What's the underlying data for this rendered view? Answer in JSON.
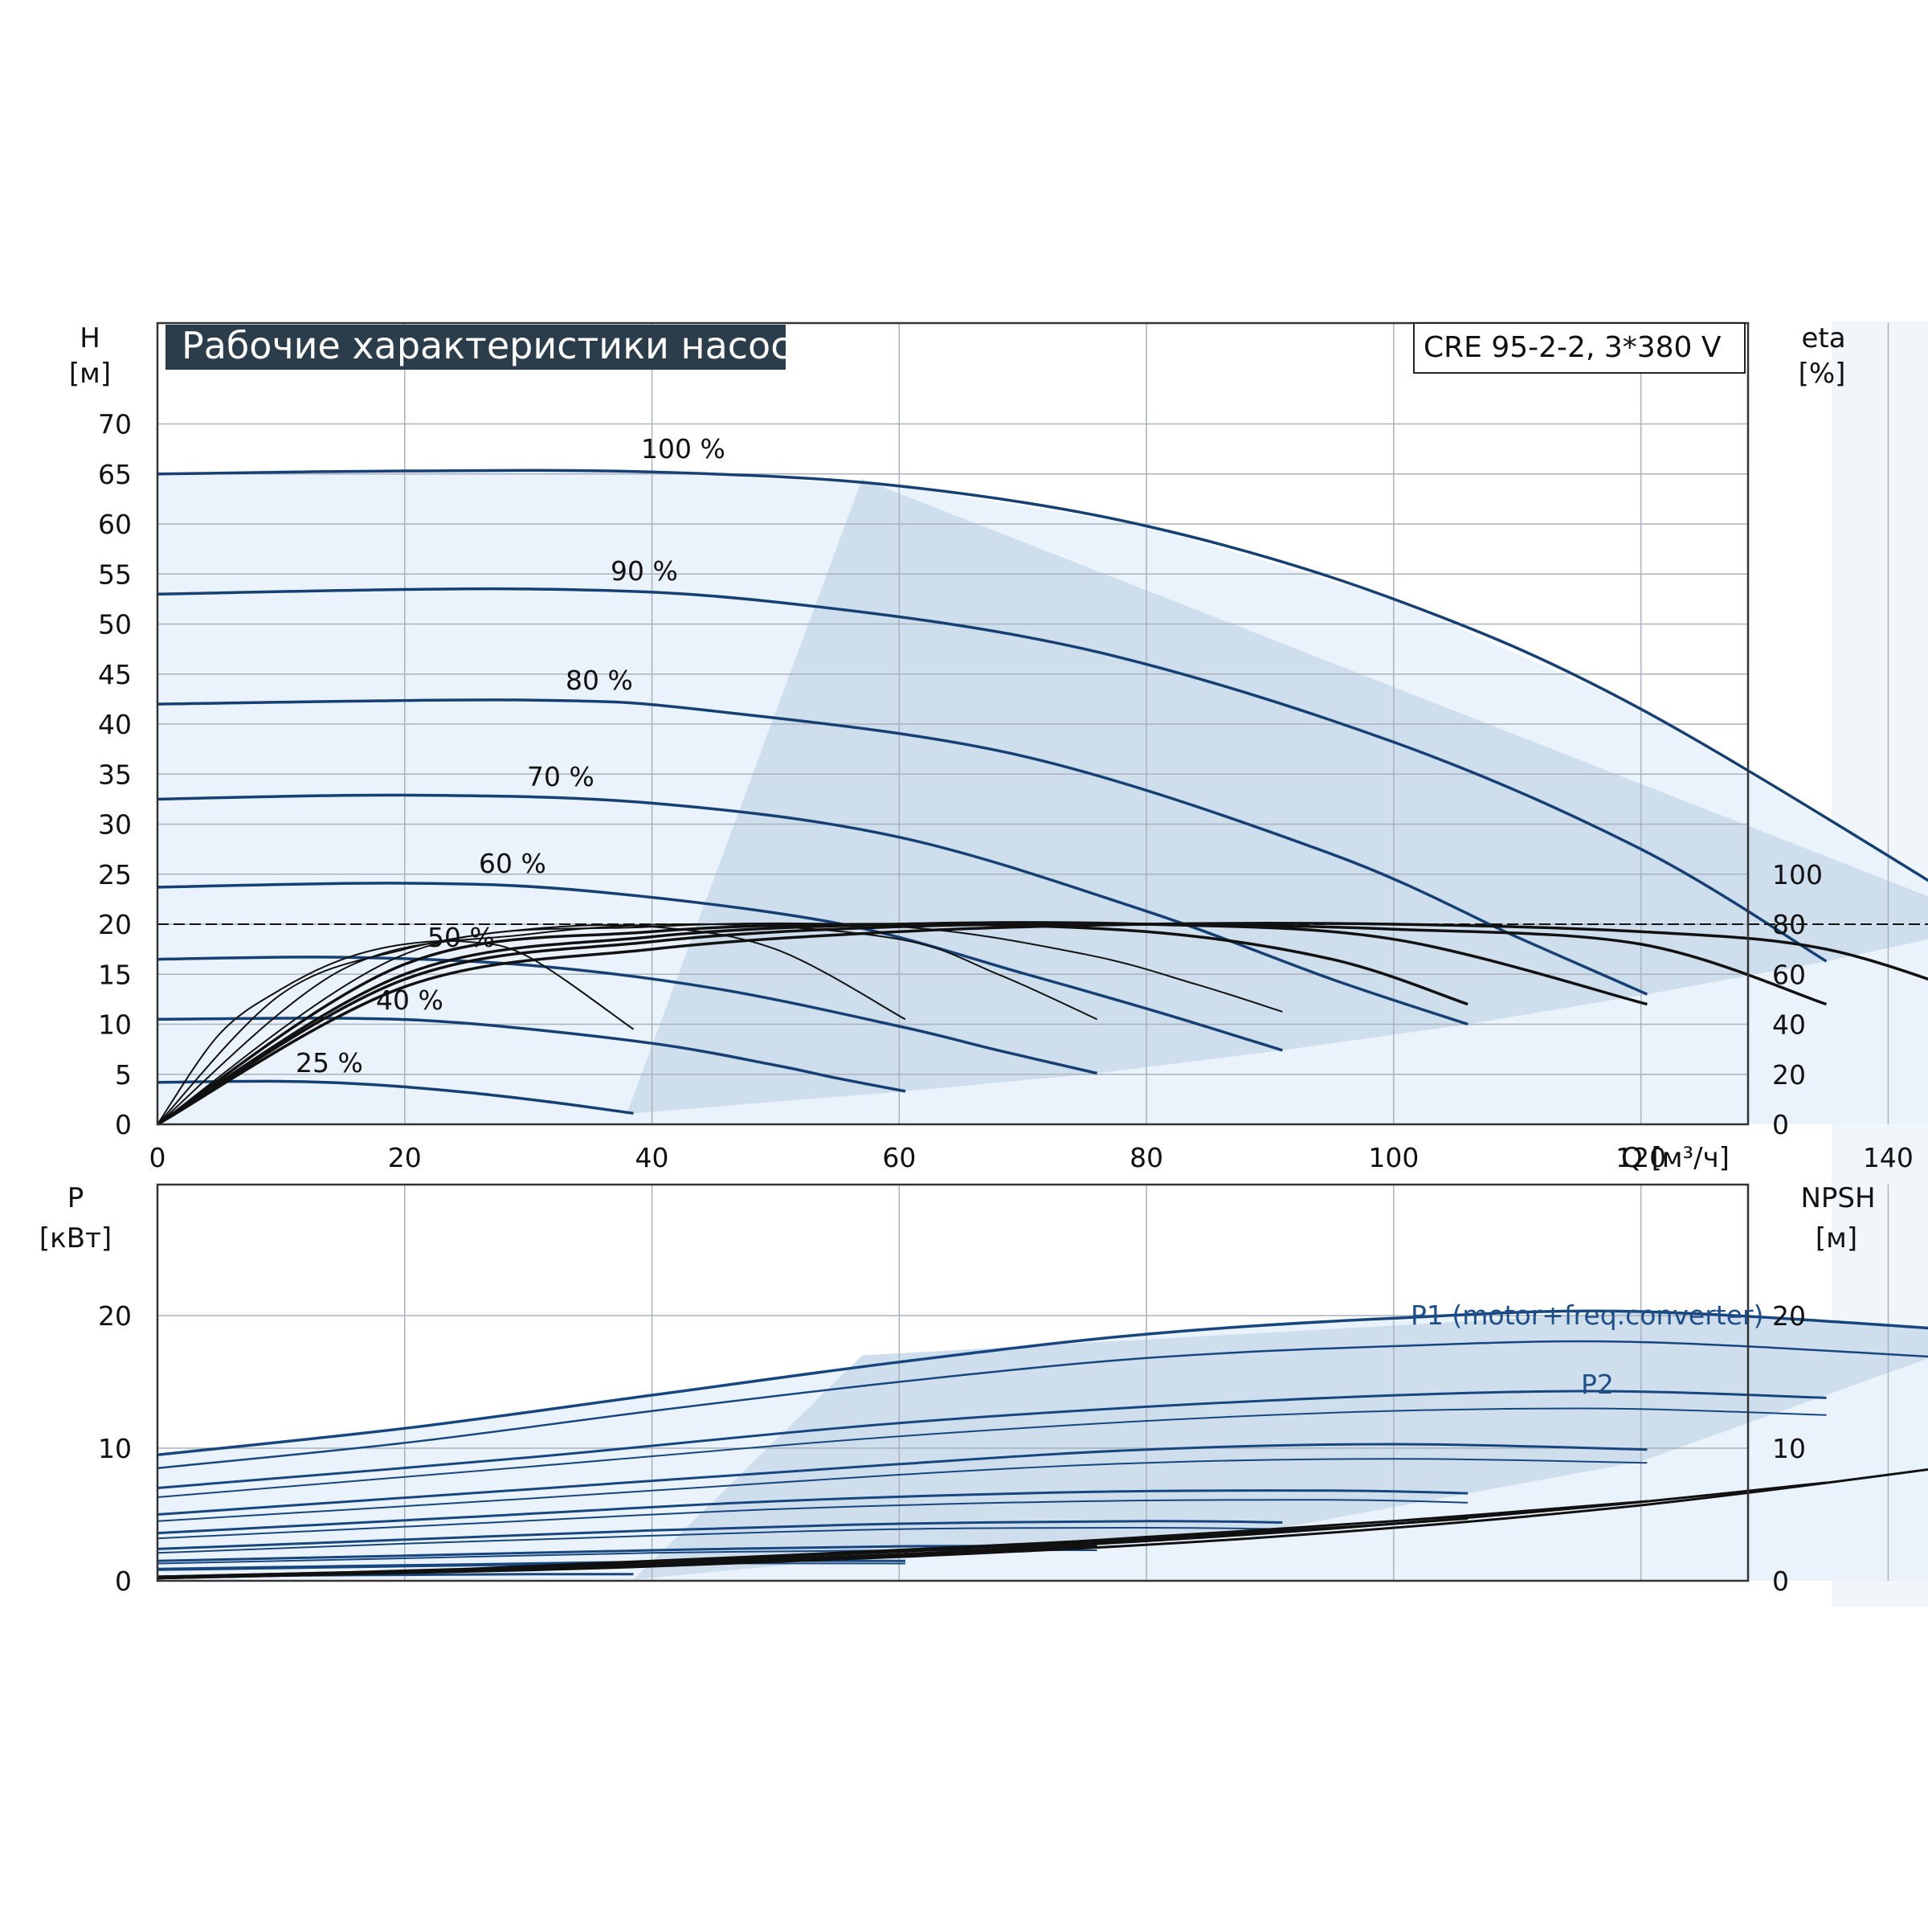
{
  "title": "Рабочие характеристики насоса",
  "model": "CRE 95-2-2, 3*380 V",
  "colors": {
    "title_bg": "#2b3c4b",
    "curve_blue": "#163f73",
    "power_blue": "#17467f",
    "efficiency_black": "#111111",
    "region_light": "#eaf3fb",
    "region_dark": "#cfdeed",
    "grid": "#a9b1bb"
  },
  "chart_data": [
    {
      "type": "line",
      "id": "head-efficiency",
      "xlabel": "Q [м³/ч]",
      "ylabel": "H",
      "ylabel_unit": "[м]",
      "y2label": "eta",
      "y2label_unit": "[%]",
      "xlim": [
        0,
        164
      ],
      "ylim": [
        0,
        75
      ],
      "y2lim": [
        0,
        165
      ],
      "xticks": [
        "0",
        "20",
        "40",
        "60",
        "80",
        "100",
        "120",
        "140"
      ],
      "yticks": [
        "0",
        "5",
        "10",
        "15",
        "20",
        "25",
        "30",
        "35",
        "40",
        "45",
        "50",
        "55",
        "60",
        "65",
        "70"
      ],
      "y2ticks": [
        "0",
        "20",
        "40",
        "60",
        "80",
        "100"
      ],
      "grid": true,
      "series": [
        {
          "name": "100 %",
          "shutoff": 65.0,
          "x": [
            0,
            20,
            40,
            60,
            80,
            100,
            120,
            149
          ],
          "y": [
            65.0,
            65.3,
            65.2,
            63.8,
            59.8,
            52.5,
            41.5,
            20.0
          ]
        },
        {
          "name": "90 %",
          "shutoff": 53.0,
          "x": [
            0,
            30,
            50,
            75,
            100,
            120,
            135
          ],
          "y": [
            53.0,
            53.5,
            52.2,
            47.5,
            38.2,
            27.5,
            16.3
          ]
        },
        {
          "name": "80 %",
          "shutoff": 42.0,
          "x": [
            0,
            30,
            45,
            70,
            95,
            110,
            120.5
          ],
          "y": [
            42.0,
            42.4,
            41.3,
            36.8,
            27.0,
            18.7,
            13.0
          ]
        },
        {
          "name": "70 %",
          "shutoff": 32.5,
          "x": [
            0,
            20,
            40,
            60,
            80,
            95,
            106
          ],
          "y": [
            32.5,
            32.9,
            32.1,
            28.7,
            21.3,
            14.5,
            10.0
          ]
        },
        {
          "name": "60 %",
          "shutoff": 23.7,
          "x": [
            0,
            20,
            35,
            55,
            70,
            81,
            91
          ],
          "y": [
            23.7,
            24.1,
            23.3,
            20.1,
            15.1,
            11.2,
            7.4
          ]
        },
        {
          "name": "50 %",
          "shutoff": 16.5,
          "x": [
            0,
            15,
            30,
            45,
            60,
            68,
            76
          ],
          "y": [
            16.5,
            16.7,
            15.9,
            13.6,
            9.8,
            7.4,
            5.1
          ]
        },
        {
          "name": "40 %",
          "shutoff": 10.5,
          "x": [
            0,
            15,
            25,
            40,
            50,
            55,
            60.5
          ],
          "y": [
            10.5,
            10.6,
            10.1,
            8.1,
            5.9,
            4.6,
            3.3
          ]
        },
        {
          "name": "25 %",
          "shutoff": 4.2,
          "x": [
            0,
            10,
            17,
            25,
            32,
            38.5
          ],
          "y": [
            4.2,
            4.3,
            4.0,
            3.2,
            2.2,
            1.1
          ]
        }
      ],
      "efficiency": [
        {
          "x": [
            0,
            20,
            40,
            60,
            80,
            100,
            120,
            135,
            149
          ],
          "eta": [
            0,
            55,
            70,
            77,
            80,
            80,
            77,
            70,
            48
          ]
        },
        {
          "x": [
            0,
            20,
            40,
            60,
            80,
            100,
            120,
            135
          ],
          "eta": [
            0,
            58,
            73,
            79,
            80,
            78,
            72,
            48
          ]
        },
        {
          "x": [
            0,
            20,
            40,
            60,
            80,
            100,
            120.5
          ],
          "eta": [
            0,
            60,
            75,
            80,
            80,
            74,
            48
          ]
        },
        {
          "x": [
            0,
            20,
            40,
            60,
            80,
            95,
            106
          ],
          "eta": [
            0,
            64,
            77,
            80,
            77,
            66,
            48
          ]
        },
        {
          "x": [
            0,
            20,
            40,
            60,
            75,
            84,
            91
          ],
          "eta": [
            0,
            68,
            79,
            79,
            68,
            56,
            45
          ]
        },
        {
          "x": [
            0,
            15,
            30,
            45,
            60,
            68,
            76
          ],
          "eta": [
            0,
            62,
            76,
            80,
            74,
            60,
            42
          ]
        },
        {
          "x": [
            0,
            10,
            20,
            30,
            40,
            50,
            60.5
          ],
          "eta": [
            0,
            52,
            70,
            78,
            79,
            70,
            42
          ]
        },
        {
          "x": [
            0,
            5,
            10,
            15,
            20,
            25,
            30,
            38.5
          ],
          "eta": [
            0,
            36,
            54,
            66,
            72,
            73,
            67,
            38
          ]
        }
      ],
      "efficiency_limit": {
        "x": [
          0,
          149
        ],
        "eta": [
          80,
          80
        ]
      }
    },
    {
      "type": "line",
      "id": "power-npsh",
      "xlabel": "",
      "ylabel": "P",
      "ylabel_unit": "[кВт]",
      "y2label": "NPSH",
      "y2label_unit": "[м]",
      "xlim": [
        0,
        164
      ],
      "ylim": [
        0,
        25
      ],
      "y2lim": [
        0,
        25
      ],
      "yticks": [
        "0",
        "10",
        "20"
      ],
      "y2ticks": [
        "0",
        "10",
        "20"
      ],
      "grid": true,
      "series": [
        {
          "name": "P1 (motor+freq.converter)",
          "x": [
            0,
            20,
            40,
            60,
            80,
            100,
            120,
            149
          ],
          "y": [
            9.5,
            11.5,
            14.0,
            16.5,
            18.6,
            19.8,
            20.3,
            18.7
          ]
        },
        {
          "name": "P2",
          "x": [
            0,
            20,
            40,
            60,
            80,
            100,
            120,
            149
          ],
          "y": [
            8.5,
            10.4,
            12.8,
            15.0,
            16.8,
            17.7,
            18.0,
            16.6
          ]
        }
      ],
      "speed_curves": [
        {
          "x": [
            0,
            30,
            60,
            90,
            115,
            135
          ],
          "y": [
            7.0,
            9.3,
            11.9,
            13.6,
            14.3,
            13.8
          ]
        },
        {
          "x": [
            0,
            30,
            60,
            90,
            115,
            135
          ],
          "y": [
            6.3,
            8.6,
            10.9,
            12.5,
            13.0,
            12.5
          ]
        },
        {
          "x": [
            0,
            30,
            60,
            80,
            100,
            120.5
          ],
          "y": [
            5.0,
            6.9,
            8.8,
            9.9,
            10.3,
            9.9
          ]
        },
        {
          "x": [
            0,
            30,
            60,
            80,
            100,
            120.5
          ],
          "y": [
            4.5,
            6.2,
            8.0,
            8.9,
            9.2,
            8.9
          ]
        },
        {
          "x": [
            0,
            25,
            50,
            75,
            95,
            106
          ],
          "y": [
            3.6,
            4.8,
            6.0,
            6.7,
            6.8,
            6.6
          ]
        },
        {
          "x": [
            0,
            25,
            50,
            75,
            95,
            106
          ],
          "y": [
            3.2,
            4.3,
            5.4,
            6.0,
            6.1,
            5.9
          ]
        },
        {
          "x": [
            0,
            20,
            40,
            60,
            80,
            91
          ],
          "y": [
            2.4,
            3.1,
            3.8,
            4.3,
            4.5,
            4.4
          ]
        },
        {
          "x": [
            0,
            20,
            40,
            60,
            80,
            91
          ],
          "y": [
            2.1,
            2.8,
            3.4,
            3.9,
            4.0,
            3.9
          ]
        },
        {
          "x": [
            0,
            20,
            40,
            60,
            76
          ],
          "y": [
            1.5,
            1.9,
            2.3,
            2.6,
            2.6
          ]
        },
        {
          "x": [
            0,
            20,
            40,
            60,
            76
          ],
          "y": [
            1.3,
            1.7,
            2.1,
            2.3,
            2.3
          ]
        },
        {
          "x": [
            0,
            15,
            30,
            45,
            60.5
          ],
          "y": [
            0.9,
            1.1,
            1.3,
            1.5,
            1.5
          ]
        },
        {
          "x": [
            0,
            15,
            30,
            45,
            60.5
          ],
          "y": [
            0.8,
            1.0,
            1.2,
            1.3,
            1.3
          ]
        },
        {
          "x": [
            0,
            10,
            20,
            30,
            38.5
          ],
          "y": [
            0.3,
            0.4,
            0.45,
            0.5,
            0.5
          ]
        }
      ],
      "npsh": [
        {
          "x": [
            0,
            30,
            60,
            90,
            120,
            149
          ],
          "y": [
            0.3,
            0.8,
            1.8,
            3.3,
            5.7,
            9.1
          ]
        },
        {
          "x": [
            0,
            30,
            60,
            90,
            115,
            135
          ],
          "y": [
            0.3,
            0.9,
            2.0,
            3.6,
            5.5,
            7.4
          ]
        },
        {
          "x": [
            0,
            30,
            60,
            80,
            100,
            120.5
          ],
          "y": [
            0.3,
            1.0,
            2.2,
            3.3,
            4.5,
            6.0
          ]
        },
        {
          "x": [
            0,
            25,
            50,
            75,
            95,
            106
          ],
          "y": [
            0.3,
            0.9,
            1.9,
            3.0,
            4.0,
            4.7
          ]
        },
        {
          "x": [
            0,
            20,
            40,
            60,
            80,
            91
          ],
          "y": [
            0.2,
            0.7,
            1.4,
            2.2,
            3.1,
            3.7
          ]
        },
        {
          "x": [
            0,
            20,
            40,
            60,
            76
          ],
          "y": [
            0.2,
            0.6,
            1.2,
            1.9,
            2.6
          ]
        },
        {
          "x": [
            0,
            15,
            30,
            45,
            60.5
          ],
          "y": [
            0.2,
            0.5,
            0.9,
            1.4,
            2.0
          ]
        }
      ]
    }
  ]
}
